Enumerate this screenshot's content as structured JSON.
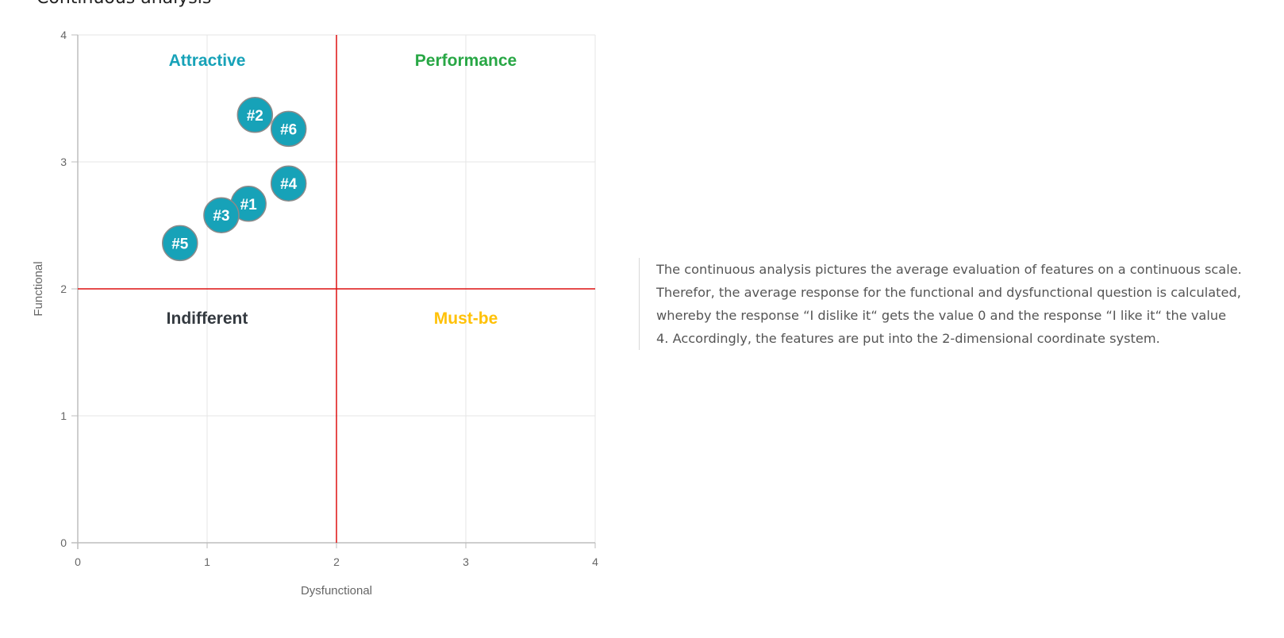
{
  "page": {
    "heading": "Continuous analysis"
  },
  "description": "The continuous analysis pictures the average evaluation of features on a continuous scale. Therefor, the average response for the functional and dysfunctional question is calculated, whereby the response “I dislike it“ gets the value 0 and the response “I like it“ the value 4. Accordingly, the features are put into the 2-dimensional coordinate system.",
  "chart_data": {
    "type": "scatter",
    "title": "",
    "xlabel": "Dysfunctional",
    "ylabel": "Functional",
    "xlim": [
      0,
      4
    ],
    "ylim": [
      0,
      4
    ],
    "x_ticks": [
      "0",
      "1",
      "2",
      "3",
      "4"
    ],
    "y_ticks": [
      "0",
      "1",
      "2",
      "3",
      "4"
    ],
    "grid": true,
    "divider_lines": {
      "x": 2,
      "y": 2,
      "color": "#dd1111"
    },
    "quadrants": [
      {
        "label": "Attractive",
        "x": 1,
        "y": 3.8,
        "color": "#17a2b8"
      },
      {
        "label": "Performance",
        "x": 3,
        "y": 3.8,
        "color": "#28a745"
      },
      {
        "label": "Indifferent",
        "x": 1,
        "y": 1.77,
        "color": "#343a40"
      },
      {
        "label": "Must-be",
        "x": 3,
        "y": 1.77,
        "color": "#ffc107"
      }
    ],
    "point_color": "#17a2b8",
    "points": [
      {
        "label": "#1",
        "x": 1.32,
        "y": 2.67
      },
      {
        "label": "#2",
        "x": 1.37,
        "y": 3.37
      },
      {
        "label": "#3",
        "x": 1.11,
        "y": 2.58
      },
      {
        "label": "#4",
        "x": 1.63,
        "y": 2.83
      },
      {
        "label": "#5",
        "x": 0.79,
        "y": 2.36
      },
      {
        "label": "#6",
        "x": 1.63,
        "y": 3.26
      }
    ]
  }
}
